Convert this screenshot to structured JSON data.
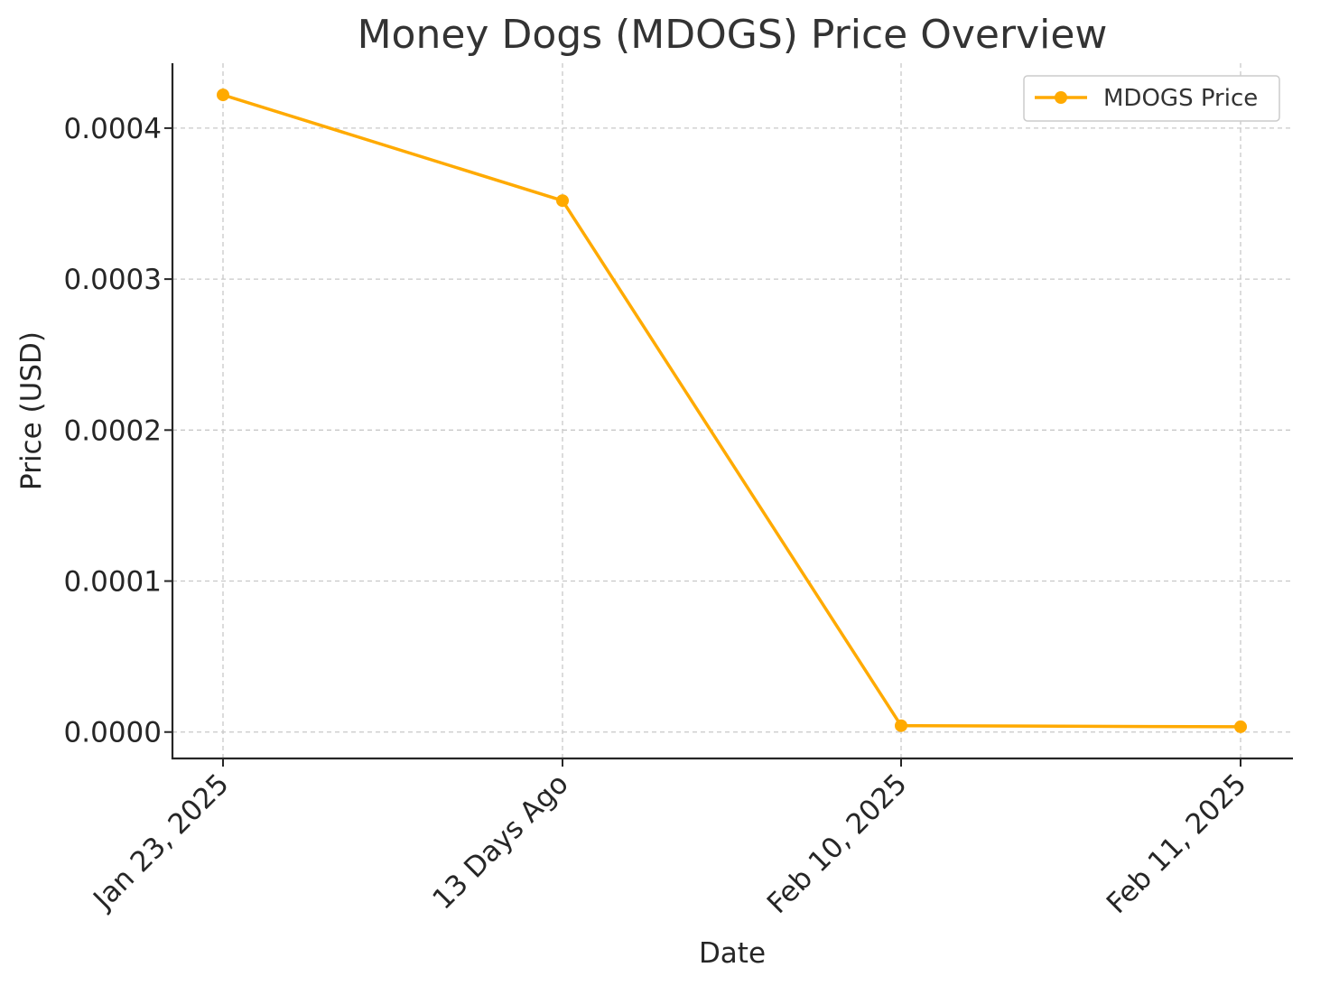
{
  "chart_data": {
    "type": "line",
    "title": "Money Dogs (MDOGS) Price Overview",
    "xlabel": "Date",
    "ylabel": "Price (USD)",
    "categories": [
      "Jan 23, 2025",
      "13 Days Ago",
      "Feb 10, 2025",
      "Feb 11, 2025"
    ],
    "yticks": [
      "0.0000",
      "0.0001",
      "0.0002",
      "0.0003",
      "0.0004"
    ],
    "ylim": [
      -1.75e-05,
      0.000443
    ],
    "grid": true,
    "legend_position": "top-right",
    "series": [
      {
        "name": "MDOGS Price",
        "color": "#FFAA00",
        "values": [
          0.000422,
          0.000352,
          4.2e-06,
          3.5e-06
        ]
      }
    ]
  }
}
